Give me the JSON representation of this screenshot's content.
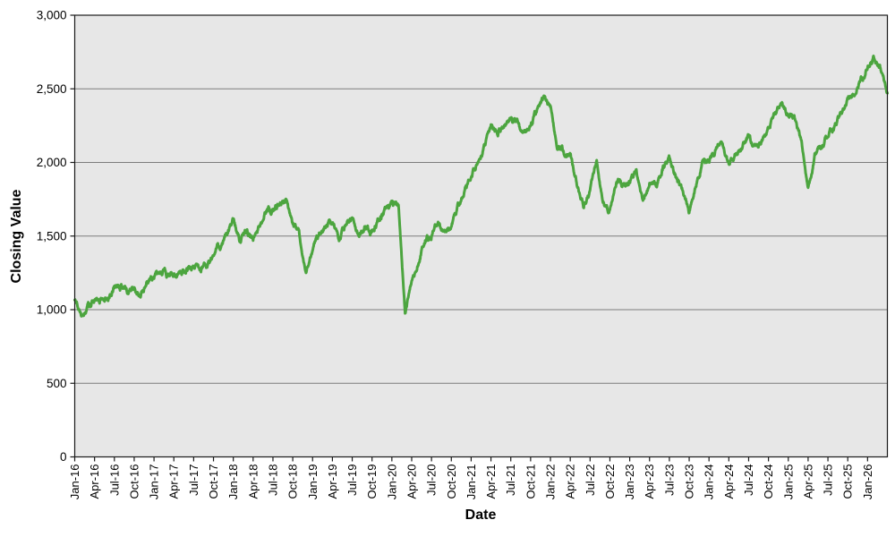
{
  "chart_data": {
    "type": "line",
    "title": "",
    "xlabel": "Date",
    "ylabel": "Closing Value",
    "ylim": [
      0,
      3000
    ],
    "grid": "horizontal",
    "legend": "none",
    "plot_bg": "#e7e7e7",
    "grid_color": "#7d7d7d",
    "axis_color": "#1a1a1a",
    "y_ticks": [
      {
        "v": 0,
        "label": "0"
      },
      {
        "v": 500,
        "label": "500"
      },
      {
        "v": 1000,
        "label": "1,000"
      },
      {
        "v": 1500,
        "label": "1,500"
      },
      {
        "v": 2000,
        "label": "2,000"
      },
      {
        "v": 2500,
        "label": "2,500"
      },
      {
        "v": 3000,
        "label": "3,000"
      }
    ],
    "x_ticks": [
      "Jan-16",
      "Apr-16",
      "Jul-16",
      "Oct-16",
      "Jan-17",
      "Apr-17",
      "Jul-17",
      "Oct-17",
      "Jan-18",
      "Apr-18",
      "Jul-18",
      "Oct-18",
      "Jan-19",
      "Apr-19",
      "Jul-19",
      "Oct-19",
      "Jan-20",
      "Apr-20",
      "Jul-20",
      "Oct-20",
      "Jan-21",
      "Apr-21",
      "Jul-21",
      "Oct-21",
      "Jan-22",
      "Apr-22",
      "Jul-22",
      "Oct-22",
      "Jan-23",
      "Apr-23",
      "Jul-23",
      "Oct-23",
      "Jan-24",
      "Apr-24",
      "Jul-24",
      "Oct-24",
      "Jan-25",
      "Apr-25",
      "Jul-25",
      "Oct-25",
      "Jan-26"
    ],
    "x_tick_month_step": 3,
    "series": [
      {
        "name": "Closing Value",
        "color": "#4ca53f",
        "months": [
          "Jan-16",
          "Feb-16",
          "Mar-16",
          "Apr-16",
          "May-16",
          "Jun-16",
          "Jul-16",
          "Aug-16",
          "Sep-16",
          "Oct-16",
          "Nov-16",
          "Dec-16",
          "Jan-17",
          "Feb-17",
          "Mar-17",
          "Apr-17",
          "May-17",
          "Jun-17",
          "Jul-17",
          "Aug-17",
          "Sep-17",
          "Oct-17",
          "Nov-17",
          "Dec-17",
          "Jan-18",
          "Feb-18",
          "Mar-18",
          "Apr-18",
          "May-18",
          "Jun-18",
          "Jul-18",
          "Aug-18",
          "Sep-18",
          "Oct-18",
          "Nov-18",
          "Dec-18",
          "Jan-19",
          "Feb-19",
          "Mar-19",
          "Apr-19",
          "May-19",
          "Jun-19",
          "Jul-19",
          "Aug-19",
          "Sep-19",
          "Oct-19",
          "Nov-19",
          "Dec-19",
          "Jan-20",
          "Feb-20",
          "Mar-20",
          "Apr-20",
          "May-20",
          "Jun-20",
          "Jul-20",
          "Aug-20",
          "Sep-20",
          "Oct-20",
          "Nov-20",
          "Dec-20",
          "Jan-21",
          "Feb-21",
          "Mar-21",
          "Apr-21",
          "May-21",
          "Jun-21",
          "Jul-21",
          "Aug-21",
          "Sep-21",
          "Oct-21",
          "Nov-21",
          "Dec-21",
          "Jan-22",
          "Feb-22",
          "Mar-22",
          "Apr-22",
          "May-22",
          "Jun-22",
          "Jul-22",
          "Aug-22",
          "Sep-22",
          "Oct-22",
          "Nov-22",
          "Dec-22",
          "Jan-23",
          "Feb-23",
          "Mar-23",
          "Apr-23",
          "May-23",
          "Jun-23",
          "Jul-23",
          "Aug-23",
          "Sep-23",
          "Oct-23",
          "Nov-23",
          "Dec-23",
          "Jan-24",
          "Feb-24",
          "Mar-24",
          "Apr-24",
          "May-24",
          "Jun-24",
          "Jul-24",
          "Aug-24",
          "Sep-24",
          "Oct-24",
          "Nov-24",
          "Dec-24",
          "Jan-25",
          "Feb-25",
          "Mar-25",
          "Apr-25",
          "May-25",
          "Jun-25",
          "Jul-25",
          "Aug-25",
          "Sep-25",
          "Oct-25",
          "Nov-25",
          "Dec-25",
          "Jan-26",
          "Feb-26",
          "Mar-26",
          "Apr-26"
        ],
        "values": [
          1075,
          945,
          1020,
          1060,
          1090,
          1055,
          1145,
          1155,
          1125,
          1150,
          1085,
          1200,
          1210,
          1235,
          1250,
          1245,
          1270,
          1265,
          1285,
          1250,
          1300,
          1360,
          1440,
          1510,
          1620,
          1460,
          1530,
          1500,
          1560,
          1665,
          1690,
          1730,
          1745,
          1570,
          1500,
          1230,
          1420,
          1520,
          1545,
          1605,
          1465,
          1570,
          1615,
          1485,
          1570,
          1530,
          1630,
          1665,
          1705,
          1710,
          975,
          1200,
          1320,
          1490,
          1495,
          1615,
          1500,
          1570,
          1700,
          1800,
          1890,
          2010,
          2090,
          2250,
          2210,
          2240,
          2310,
          2270,
          2180,
          2260,
          2350,
          2450,
          2400,
          2110,
          2060,
          2040,
          1870,
          1720,
          1810,
          2020,
          1700,
          1680,
          1870,
          1830,
          1880,
          1950,
          1730,
          1860,
          1820,
          1960,
          2010,
          1900,
          1820,
          1660,
          1850,
          1990,
          2020,
          2080,
          2120,
          1990,
          2080,
          2130,
          2190,
          2090,
          2150,
          2240,
          2330,
          2390,
          2330,
          2300,
          2150,
          1800,
          2030,
          2110,
          2190,
          2250,
          2330,
          2420,
          2470,
          2560,
          2640,
          2720,
          2630,
          2470
        ]
      }
    ]
  }
}
